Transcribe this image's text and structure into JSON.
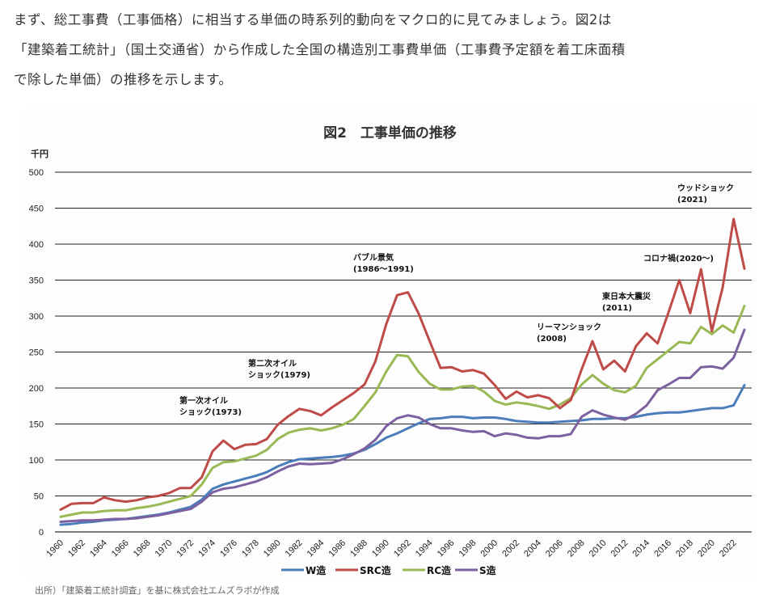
{
  "intro": {
    "lines": [
      "まず、総工事費（工事価格）に相当する単価の時系列的動向をマクロ的に見てみましょう。図2は",
      "「建築着工統計」（国土交通省）から作成した全国の構造別工事費単価（工事費予定額を着工床面積",
      "で除した単価）の推移を示します。"
    ]
  },
  "source_note": "出所）「建築着工統計調査」を基に株式会社エムズラボが作成",
  "chart_data": {
    "type": "line",
    "title": "図2　工事単価の推移",
    "ylabel": "千円",
    "xlabel": "",
    "ylim": [
      0,
      500
    ],
    "yticks": [
      0,
      50,
      100,
      150,
      200,
      250,
      300,
      350,
      400,
      450,
      500
    ],
    "grid": true,
    "legend_position": "bottom-center",
    "x": [
      1960,
      1961,
      1962,
      1963,
      1964,
      1965,
      1966,
      1967,
      1968,
      1969,
      1970,
      1971,
      1972,
      1973,
      1974,
      1975,
      1976,
      1977,
      1978,
      1979,
      1980,
      1981,
      1982,
      1983,
      1984,
      1985,
      1986,
      1987,
      1988,
      1989,
      1990,
      1991,
      1992,
      1993,
      1994,
      1995,
      1996,
      1997,
      1998,
      1999,
      2000,
      2001,
      2002,
      2003,
      2004,
      2005,
      2006,
      2007,
      2008,
      2009,
      2010,
      2011,
      2012,
      2013,
      2014,
      2015,
      2016,
      2017,
      2018,
      2019,
      2020,
      2021,
      2022,
      2023
    ],
    "xtick_labels": [
      "1960",
      "1962",
      "1964",
      "1966",
      "1968",
      "1970",
      "1972",
      "1974",
      "1976",
      "1978",
      "1980",
      "1982",
      "1984",
      "1986",
      "1988",
      "1990",
      "1992",
      "1994",
      "1996",
      "1998",
      "2000",
      "2002",
      "2004",
      "2006",
      "2008",
      "2010",
      "2012",
      "2014",
      "2016",
      "2018",
      "2020",
      "2022"
    ],
    "series": [
      {
        "name": "W造",
        "color": "#4a7ebb",
        "values": [
          10,
          11,
          13,
          14,
          16,
          17,
          18,
          20,
          22,
          24,
          27,
          31,
          35,
          45,
          60,
          66,
          70,
          74,
          78,
          83,
          91,
          97,
          101,
          102,
          103,
          104,
          106,
          109,
          114,
          122,
          131,
          137,
          144,
          151,
          157,
          158,
          160,
          160,
          158,
          159,
          159,
          157,
          154,
          153,
          152,
          152,
          153,
          154,
          155,
          157,
          157,
          158,
          158,
          160,
          163,
          165,
          166,
          166,
          168,
          170,
          172,
          172,
          176,
          204
        ]
      },
      {
        "name": "SRC造",
        "color": "#be4b48",
        "values": [
          31,
          39,
          40,
          40,
          48,
          44,
          42,
          44,
          48,
          50,
          54,
          61,
          61,
          76,
          112,
          127,
          115,
          121,
          122,
          129,
          149,
          161,
          171,
          168,
          162,
          173,
          183,
          193,
          205,
          237,
          289,
          329,
          333,
          303,
          265,
          228,
          229,
          223,
          225,
          220,
          204,
          185,
          195,
          187,
          190,
          186,
          172,
          183,
          226,
          265,
          226,
          238,
          223,
          258,
          276,
          262,
          305,
          350,
          304,
          365,
          279,
          340,
          435,
          366
        ]
      },
      {
        "name": "RC造",
        "color": "#98b954",
        "values": [
          21,
          24,
          27,
          27,
          29,
          30,
          30,
          33,
          35,
          38,
          42,
          46,
          50,
          66,
          89,
          97,
          98,
          102,
          106,
          114,
          129,
          138,
          142,
          144,
          141,
          144,
          149,
          157,
          175,
          194,
          223,
          246,
          244,
          222,
          206,
          198,
          198,
          202,
          203,
          195,
          182,
          177,
          180,
          178,
          175,
          171,
          177,
          186,
          205,
          218,
          206,
          197,
          194,
          203,
          228,
          240,
          252,
          264,
          262,
          285,
          275,
          287,
          277,
          314
        ]
      },
      {
        "name": "S造",
        "color": "#7d60a0",
        "values": [
          14,
          15,
          16,
          16,
          17,
          18,
          18,
          19,
          21,
          23,
          26,
          29,
          32,
          42,
          55,
          60,
          62,
          66,
          70,
          76,
          84,
          91,
          95,
          94,
          95,
          96,
          101,
          108,
          116,
          128,
          147,
          158,
          162,
          159,
          150,
          144,
          144,
          141,
          139,
          140,
          133,
          137,
          135,
          131,
          130,
          133,
          133,
          136,
          160,
          169,
          163,
          159,
          156,
          164,
          176,
          197,
          205,
          214,
          214,
          229,
          230,
          227,
          242,
          281
        ]
      }
    ],
    "annotations": [
      {
        "id": "oil1",
        "lines": [
          "第一次オイル",
          "ショック(1973)"
        ]
      },
      {
        "id": "oil2",
        "lines": [
          "第二次オイル",
          "ショック(1979)"
        ]
      },
      {
        "id": "bubble",
        "lines": [
          "バブル景気",
          "(1986～1991)"
        ]
      },
      {
        "id": "lehman",
        "lines": [
          "リーマンショック",
          "(2008)"
        ]
      },
      {
        "id": "quake",
        "lines": [
          "東日本大震災",
          "(2011)"
        ]
      },
      {
        "id": "corona",
        "lines": [
          "コロナ禍(2020～)"
        ]
      },
      {
        "id": "wood",
        "lines": [
          "ウッドショック",
          "(2021)"
        ]
      }
    ]
  }
}
